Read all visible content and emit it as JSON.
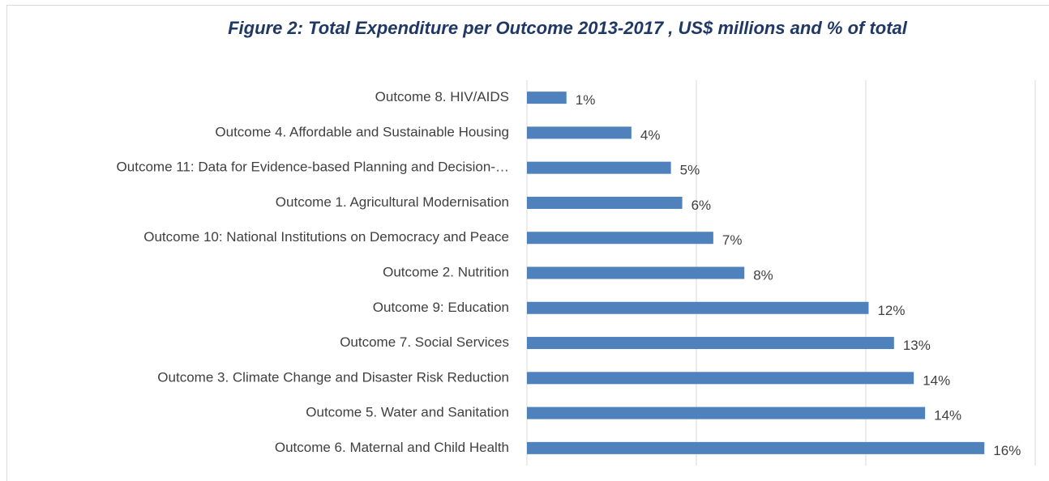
{
  "chart_data": {
    "type": "bar",
    "orientation": "horizontal",
    "title": "Figure 2:  Total Expenditure per Outcome 2013-2017 , US$ millions and % of total",
    "categories": [
      "Outcome 8. HIV/AIDS",
      "Outcome 4.  Affordable and Sustainable Housing",
      "Outcome 11:  Data for Evidence-based Planning and Decision-…",
      "Outcome 1. Agricultural Modernisation",
      "Outcome 10:  National Institutions on Democracy and Peace",
      "Outcome 2. Nutrition",
      "Outcome 9:  Education",
      "Outcome 7. Social Services",
      "Outcome 3.  Climate Change and Disaster Risk Reduction",
      "Outcome 5.   Water and Sanitation",
      "Outcome 6.   Maternal and Child Health"
    ],
    "values": [
      1.4,
      3.7,
      5.1,
      5.5,
      6.6,
      7.7,
      12.1,
      13.0,
      13.7,
      14.1,
      16.2
    ],
    "value_labels": [
      "1%",
      "4%",
      "5%",
      "6%",
      "7%",
      "8%",
      "12%",
      "13%",
      "14%",
      "14%",
      "16%"
    ],
    "color": "#4f81bd",
    "xlim": [
      0,
      18
    ],
    "xticks": [
      0,
      6,
      12,
      18
    ],
    "grid": true
  }
}
